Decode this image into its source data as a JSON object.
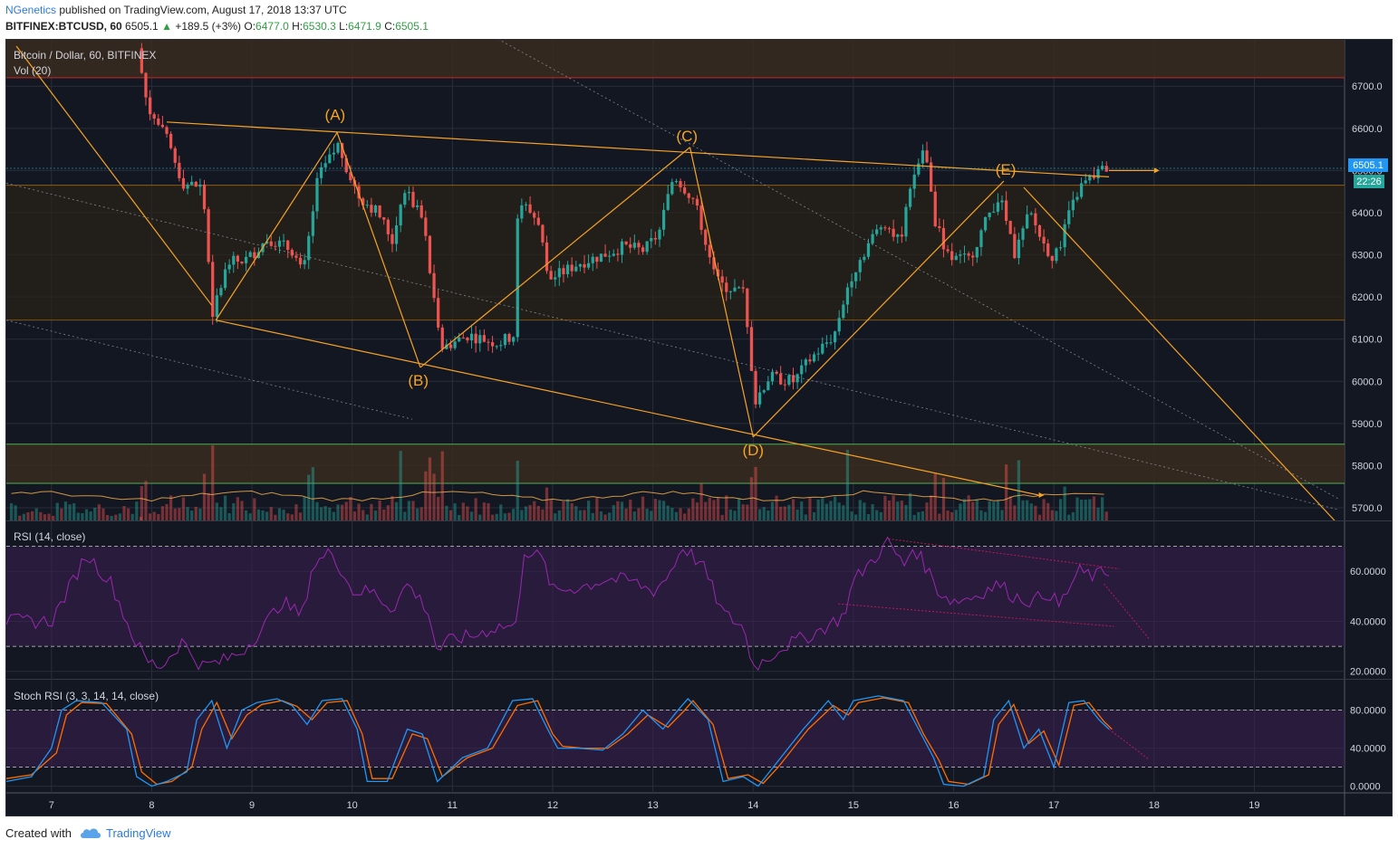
{
  "header": {
    "author": "NGenetics",
    "published_text": "published on TradingView.com, August 17, 2018 13:37 UTC",
    "symbol": "BITFINEX:BTCUSD, 60",
    "last": "6505.1",
    "change": "+189.5 (+3%)",
    "o_label": "O:",
    "o_value": "6477.0",
    "h_label": "H:",
    "h_value": "6530.3",
    "l_label": "L:",
    "l_value": "6471.9",
    "c_label": "C:",
    "c_value": "6505.1"
  },
  "footer": {
    "created_with": "Created with",
    "brand": "TradingView"
  },
  "colors": {
    "background": "#131722",
    "up": "#26a69a",
    "down": "#ef5350",
    "orange": "#f7a325",
    "rsi": "#9c27b0",
    "stoch_k": "#2196f3",
    "stoch_d": "#ff6d00"
  },
  "chart_data": {
    "type": "candlestick",
    "title": "Bitcoin / Dollar, 60, BITFINEX",
    "volume_label": "Vol (20)",
    "price_axis": {
      "ticks": [
        "6700.0",
        "6600.0",
        "6500.0",
        "6400.0",
        "6300.0",
        "6200.0",
        "6100.0",
        "6000.0",
        "5900.0",
        "5800.0",
        "5700.0"
      ],
      "values": [
        6700,
        6600,
        6500,
        6400,
        6300,
        6200,
        6100,
        6000,
        5900,
        5800,
        5700
      ],
      "range": [
        5670,
        6810
      ]
    },
    "x_axis": {
      "labels": [
        "7",
        "8",
        "9",
        "10",
        "11",
        "12",
        "13",
        "14",
        "15",
        "16",
        "17",
        "18",
        "19"
      ],
      "days": [
        7,
        8,
        9,
        10,
        11,
        12,
        13,
        14,
        15,
        16,
        17,
        18,
        19
      ],
      "range": [
        6.55,
        19.9
      ]
    },
    "last_price_tag": "6505.1",
    "countdown_tag": "22:26",
    "price_path": [
      [
        7.9,
        6790
      ],
      [
        8.0,
        6650
      ],
      [
        8.2,
        6570
      ],
      [
        8.35,
        6470
      ],
      [
        8.55,
        6460
      ],
      [
        8.65,
        6160
      ],
      [
        8.8,
        6280
      ],
      [
        9.0,
        6290
      ],
      [
        9.2,
        6340
      ],
      [
        9.45,
        6310
      ],
      [
        9.55,
        6250
      ],
      [
        9.7,
        6480
      ],
      [
        9.9,
        6560
      ],
      [
        10.1,
        6440
      ],
      [
        10.3,
        6400
      ],
      [
        10.45,
        6330
      ],
      [
        10.55,
        6460
      ],
      [
        10.75,
        6380
      ],
      [
        10.85,
        6200
      ],
      [
        10.95,
        6080
      ],
      [
        11.2,
        6110
      ],
      [
        11.5,
        6090
      ],
      [
        11.65,
        6110
      ],
      [
        11.7,
        6430
      ],
      [
        11.9,
        6380
      ],
      [
        12.0,
        6240
      ],
      [
        12.3,
        6280
      ],
      [
        12.55,
        6300
      ],
      [
        12.75,
        6320
      ],
      [
        12.95,
        6310
      ],
      [
        13.1,
        6350
      ],
      [
        13.25,
        6490
      ],
      [
        13.45,
        6430
      ],
      [
        13.6,
        6310
      ],
      [
        13.7,
        6230
      ],
      [
        13.95,
        6210
      ],
      [
        14.05,
        5950
      ],
      [
        14.2,
        6010
      ],
      [
        14.45,
        6000
      ],
      [
        14.6,
        6050
      ],
      [
        14.85,
        6110
      ],
      [
        15.0,
        6240
      ],
      [
        15.2,
        6330
      ],
      [
        15.35,
        6380
      ],
      [
        15.5,
        6330
      ],
      [
        15.65,
        6490
      ],
      [
        15.75,
        6560
      ],
      [
        15.85,
        6380
      ],
      [
        16.0,
        6290
      ],
      [
        16.2,
        6290
      ],
      [
        16.4,
        6400
      ],
      [
        16.5,
        6440
      ],
      [
        16.65,
        6300
      ],
      [
        16.8,
        6400
      ],
      [
        16.95,
        6320
      ],
      [
        17.05,
        6290
      ],
      [
        17.2,
        6400
      ],
      [
        17.3,
        6460
      ],
      [
        17.45,
        6490
      ],
      [
        17.55,
        6505
      ]
    ],
    "support_resistance": [
      6720,
      6465,
      6145,
      5851,
      5758
    ],
    "wave_labels": [
      {
        "label": "(A)",
        "x": 9.83,
        "y": 6620
      },
      {
        "label": "(B)",
        "x": 10.66,
        "y": 5990
      },
      {
        "label": "(C)",
        "x": 13.34,
        "y": 6570
      },
      {
        "label": "(D)",
        "x": 14.0,
        "y": 5825
      },
      {
        "label": "(E)",
        "x": 16.52,
        "y": 6490
      }
    ],
    "wave_points": [
      {
        "x": 8.64,
        "y": 6145
      },
      {
        "x": 9.85,
        "y": 6590
      },
      {
        "x": 10.68,
        "y": 6033
      },
      {
        "x": 13.37,
        "y": 6555
      },
      {
        "x": 14.0,
        "y": 5868
      },
      {
        "x": 16.5,
        "y": 6475
      },
      {
        "x": 16.7,
        "y": 6460
      }
    ],
    "rsi": {
      "label": "RSI (14, close)",
      "ticks": [
        "60.0000",
        "40.0000",
        "20.0000"
      ],
      "values": [
        60,
        40,
        20
      ],
      "upper": 70,
      "lower": 30,
      "range": [
        17,
        80
      ],
      "path": [
        [
          7.0,
          40
        ],
        [
          7.2,
          55
        ],
        [
          7.35,
          67
        ],
        [
          7.6,
          55
        ],
        [
          7.8,
          35
        ],
        [
          7.95,
          24
        ],
        [
          8.1,
          22
        ],
        [
          8.3,
          32
        ],
        [
          8.5,
          22
        ],
        [
          8.7,
          24
        ],
        [
          8.9,
          28
        ],
        [
          9.1,
          37
        ],
        [
          9.3,
          48
        ],
        [
          9.5,
          42
        ],
        [
          9.6,
          62
        ],
        [
          9.8,
          68
        ],
        [
          10.0,
          52
        ],
        [
          10.2,
          52
        ],
        [
          10.4,
          45
        ],
        [
          10.55,
          55
        ],
        [
          10.75,
          45
        ],
        [
          10.85,
          28
        ],
        [
          11.0,
          33
        ],
        [
          11.2,
          34
        ],
        [
          11.45,
          38
        ],
        [
          11.65,
          38
        ],
        [
          11.7,
          69
        ],
        [
          11.9,
          65
        ],
        [
          12.0,
          52
        ],
        [
          12.3,
          54
        ],
        [
          12.55,
          57
        ],
        [
          12.8,
          56
        ],
        [
          13.0,
          52
        ],
        [
          13.15,
          58
        ],
        [
          13.3,
          70
        ],
        [
          13.5,
          62
        ],
        [
          13.7,
          43
        ],
        [
          13.9,
          38
        ],
        [
          14.0,
          22
        ],
        [
          14.1,
          24
        ],
        [
          14.3,
          30
        ],
        [
          14.6,
          35
        ],
        [
          14.9,
          42
        ],
        [
          15.0,
          56
        ],
        [
          15.2,
          65
        ],
        [
          15.35,
          72
        ],
        [
          15.5,
          62
        ],
        [
          15.6,
          70
        ],
        [
          15.75,
          60
        ],
        [
          15.85,
          52
        ],
        [
          16.0,
          48
        ],
        [
          16.2,
          50
        ],
        [
          16.45,
          55
        ],
        [
          16.6,
          50
        ],
        [
          16.8,
          48
        ],
        [
          16.95,
          52
        ],
        [
          17.05,
          46
        ],
        [
          17.25,
          60
        ],
        [
          17.4,
          58
        ],
        [
          17.55,
          60
        ]
      ]
    },
    "stoch_rsi": {
      "label": "Stoch RSI (3, 3, 14, 14, close)",
      "ticks": [
        "80.0000",
        "40.0000",
        "0.0000"
      ],
      "values": [
        80,
        40,
        0
      ],
      "upper": 80,
      "lower": 20,
      "range": [
        -7,
        112
      ],
      "k_path": [
        [
          6.55,
          5
        ],
        [
          6.8,
          10
        ],
        [
          7.0,
          40
        ],
        [
          7.1,
          80
        ],
        [
          7.25,
          90
        ],
        [
          7.5,
          88
        ],
        [
          7.75,
          60
        ],
        [
          7.85,
          10
        ],
        [
          8.0,
          0
        ],
        [
          8.15,
          5
        ],
        [
          8.35,
          15
        ],
        [
          8.45,
          70
        ],
        [
          8.6,
          90
        ],
        [
          8.75,
          40
        ],
        [
          8.9,
          80
        ],
        [
          9.05,
          88
        ],
        [
          9.25,
          92
        ],
        [
          9.4,
          85
        ],
        [
          9.55,
          65
        ],
        [
          9.7,
          90
        ],
        [
          9.9,
          92
        ],
        [
          10.05,
          60
        ],
        [
          10.15,
          5
        ],
        [
          10.35,
          5
        ],
        [
          10.55,
          60
        ],
        [
          10.7,
          55
        ],
        [
          10.85,
          5
        ],
        [
          11.1,
          30
        ],
        [
          11.35,
          40
        ],
        [
          11.6,
          90
        ],
        [
          11.8,
          92
        ],
        [
          11.95,
          60
        ],
        [
          12.05,
          40
        ],
        [
          12.25,
          40
        ],
        [
          12.5,
          38
        ],
        [
          12.7,
          55
        ],
        [
          12.9,
          80
        ],
        [
          13.1,
          60
        ],
        [
          13.25,
          80
        ],
        [
          13.35,
          92
        ],
        [
          13.55,
          70
        ],
        [
          13.7,
          5
        ],
        [
          13.9,
          10
        ],
        [
          14.05,
          0
        ],
        [
          14.2,
          20
        ],
        [
          14.5,
          60
        ],
        [
          14.75,
          90
        ],
        [
          14.9,
          70
        ],
        [
          15.0,
          90
        ],
        [
          15.25,
          95
        ],
        [
          15.5,
          90
        ],
        [
          15.65,
          60
        ],
        [
          15.8,
          30
        ],
        [
          15.9,
          2
        ],
        [
          16.1,
          0
        ],
        [
          16.3,
          10
        ],
        [
          16.4,
          70
        ],
        [
          16.55,
          90
        ],
        [
          16.7,
          40
        ],
        [
          16.85,
          60
        ],
        [
          17.0,
          20
        ],
        [
          17.15,
          88
        ],
        [
          17.3,
          90
        ],
        [
          17.45,
          70
        ],
        [
          17.55,
          60
        ]
      ],
      "d_path": [
        [
          6.55,
          8
        ],
        [
          6.8,
          12
        ],
        [
          7.05,
          35
        ],
        [
          7.15,
          75
        ],
        [
          7.3,
          88
        ],
        [
          7.55,
          87
        ],
        [
          7.8,
          55
        ],
        [
          7.9,
          15
        ],
        [
          8.05,
          2
        ],
        [
          8.2,
          5
        ],
        [
          8.4,
          20
        ],
        [
          8.5,
          60
        ],
        [
          8.65,
          88
        ],
        [
          8.8,
          50
        ],
        [
          8.95,
          75
        ],
        [
          9.1,
          86
        ],
        [
          9.3,
          90
        ],
        [
          9.45,
          84
        ],
        [
          9.6,
          70
        ],
        [
          9.75,
          88
        ],
        [
          9.95,
          90
        ],
        [
          10.1,
          55
        ],
        [
          10.2,
          8
        ],
        [
          10.4,
          8
        ],
        [
          10.6,
          55
        ],
        [
          10.75,
          50
        ],
        [
          10.9,
          10
        ],
        [
          11.15,
          30
        ],
        [
          11.4,
          40
        ],
        [
          11.65,
          85
        ],
        [
          11.85,
          90
        ],
        [
          12.0,
          55
        ],
        [
          12.1,
          42
        ],
        [
          12.3,
          40
        ],
        [
          12.55,
          40
        ],
        [
          12.75,
          55
        ],
        [
          12.95,
          75
        ],
        [
          13.15,
          62
        ],
        [
          13.3,
          78
        ],
        [
          13.4,
          90
        ],
        [
          13.6,
          65
        ],
        [
          13.75,
          8
        ],
        [
          13.95,
          12
        ],
        [
          14.1,
          3
        ],
        [
          14.25,
          20
        ],
        [
          14.55,
          60
        ],
        [
          14.8,
          85
        ],
        [
          14.95,
          75
        ],
        [
          15.05,
          88
        ],
        [
          15.3,
          93
        ],
        [
          15.55,
          88
        ],
        [
          15.7,
          55
        ],
        [
          15.85,
          28
        ],
        [
          15.95,
          5
        ],
        [
          16.15,
          2
        ],
        [
          16.35,
          12
        ],
        [
          16.45,
          65
        ],
        [
          16.6,
          86
        ],
        [
          16.75,
          45
        ],
        [
          16.9,
          58
        ],
        [
          17.05,
          22
        ],
        [
          17.2,
          85
        ],
        [
          17.35,
          88
        ],
        [
          17.5,
          68
        ],
        [
          17.58,
          60
        ]
      ]
    }
  }
}
